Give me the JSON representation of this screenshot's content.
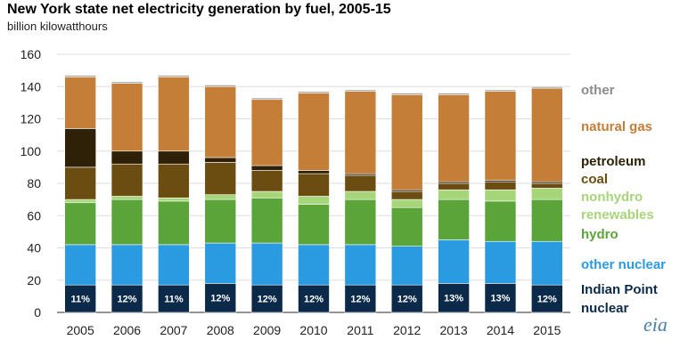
{
  "chart_data": {
    "type": "bar",
    "stacked": true,
    "title": "New York state net electricity generation by fuel, 2005-15",
    "ylabel": "billion kilowatthours",
    "ylim": [
      0,
      160
    ],
    "yticks": [
      0,
      20,
      40,
      60,
      80,
      100,
      120,
      140,
      160
    ],
    "categories": [
      "2005",
      "2006",
      "2007",
      "2008",
      "2009",
      "2010",
      "2011",
      "2012",
      "2013",
      "2014",
      "2015"
    ],
    "series": [
      {
        "name": "Indian Point nuclear",
        "color": "#0b2a4a",
        "values": [
          17,
          17,
          17,
          18,
          17,
          17,
          17,
          17,
          18,
          18,
          17
        ]
      },
      {
        "name": "other nuclear",
        "color": "#2a9be0",
        "values": [
          25,
          25,
          25,
          25,
          26,
          25,
          25,
          24,
          27,
          26,
          27
        ]
      },
      {
        "name": "hydro",
        "color": "#5aa43a",
        "values": [
          26,
          28,
          27,
          27,
          28,
          25,
          28,
          24,
          25,
          25,
          26
        ]
      },
      {
        "name": "nonhydro renewables",
        "color": "#a6d57a",
        "values": [
          2,
          2,
          2,
          3,
          4,
          5,
          5,
          5,
          6,
          7,
          7
        ]
      },
      {
        "name": "coal",
        "color": "#6b4d12",
        "values": [
          20,
          20,
          21,
          20,
          13,
          14,
          10,
          5,
          4,
          5,
          3
        ]
      },
      {
        "name": "petroleum",
        "color": "#2e2108",
        "values": [
          24,
          8,
          8,
          3,
          3,
          2,
          1,
          1,
          1,
          1,
          1
        ]
      },
      {
        "name": "natural gas",
        "color": "#c47e37",
        "values": [
          32,
          42,
          46,
          44,
          41,
          48,
          51,
          59,
          54,
          55,
          58
        ]
      },
      {
        "name": "other",
        "color": "#a9a9a9",
        "values": [
          1,
          1,
          1,
          1,
          1,
          1,
          1,
          1,
          1,
          1,
          1
        ]
      }
    ],
    "bar_labels": [
      "11%",
      "12%",
      "11%",
      "12%",
      "12%",
      "12%",
      "12%",
      "12%",
      "13%",
      "13%",
      "12%"
    ],
    "legend": [
      {
        "text": "other",
        "color": "#8c8c8c"
      },
      {
        "text": "natural gas",
        "color": "#c47e37"
      },
      {
        "text": "petroleum",
        "color": "#2e2108"
      },
      {
        "text": "coal",
        "color": "#6b4d12"
      },
      {
        "text": "nonhydro",
        "color": "#a6d57a"
      },
      {
        "text": "renewables",
        "color": "#a6d57a"
      },
      {
        "text": "hydro",
        "color": "#5aa43a"
      },
      {
        "text": "other nuclear",
        "color": "#2a9be0"
      },
      {
        "text": "Indian Point",
        "color": "#0b2a4a"
      },
      {
        "text": "nuclear",
        "color": "#0b2a4a"
      }
    ],
    "legend_placement": "right",
    "grid": true,
    "source_logo": "eia"
  }
}
